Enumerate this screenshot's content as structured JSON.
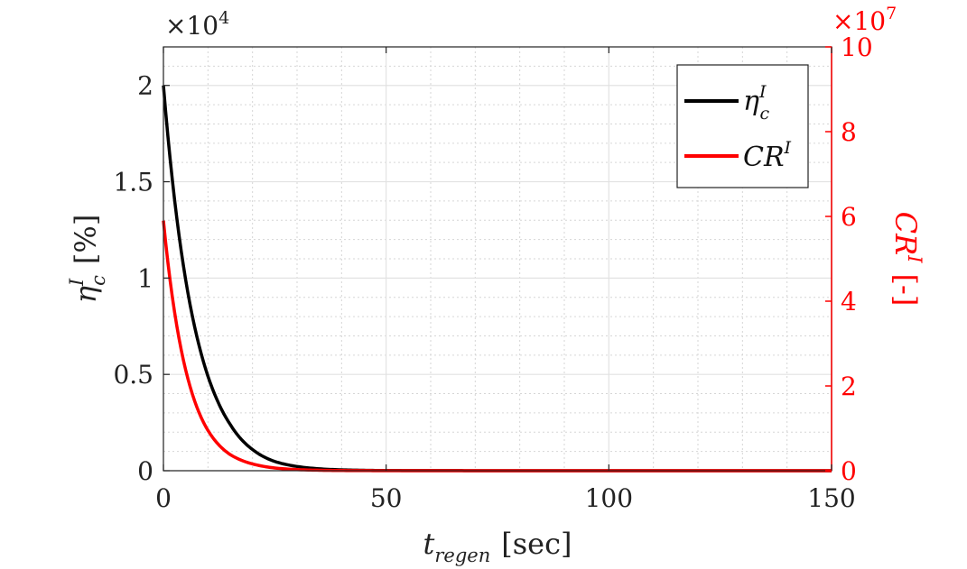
{
  "chart_data": {
    "type": "line",
    "grid": true,
    "minor_grid": true,
    "legend_position": "top-right",
    "x": {
      "label_base": "t",
      "label_sub": "regen",
      "label_unit": "[sec]",
      "lim": [
        0,
        150
      ],
      "ticks": [
        0,
        50,
        100,
        150
      ],
      "tick_labels": [
        "0",
        "50",
        "100",
        "150"
      ]
    },
    "y_left": {
      "label_base": "η",
      "label_sub": "c",
      "label_sup": "I",
      "label_unit": "[%]",
      "lim": [
        0,
        22000
      ],
      "ticks": [
        0,
        5000,
        10000,
        15000,
        20000
      ],
      "tick_labels": [
        "0",
        "0.5",
        "1",
        "1.5",
        "2"
      ],
      "exponent_label": "×10",
      "exponent_power": "4",
      "color": "#222222"
    },
    "y_right": {
      "label_base": "CR",
      "label_sup": "I",
      "label_unit": "[-]",
      "lim": [
        0,
        100000000
      ],
      "ticks": [
        0,
        20000000,
        40000000,
        60000000,
        80000000,
        100000000
      ],
      "tick_labels": [
        "0",
        "2",
        "4",
        "6",
        "8",
        "10"
      ],
      "exponent_label": "×10",
      "exponent_power": "7",
      "color": "#ff0000"
    },
    "series": [
      {
        "name": "η_c^I",
        "legend_base": "η",
        "legend_sub": "c",
        "legend_sup": "I",
        "axis": "left",
        "color": "#000000",
        "x": [
          0,
          2,
          4,
          6,
          8,
          10,
          12,
          15,
          20,
          25,
          30,
          40,
          50,
          75,
          100,
          150
        ],
        "y": [
          20000,
          15100,
          11400,
          8600,
          6500,
          4900,
          3700,
          2400,
          1100,
          480,
          220,
          45,
          10,
          0,
          0,
          0
        ]
      },
      {
        "name": "CR^I",
        "legend_base": "CR",
        "legend_sup": "I",
        "axis": "right",
        "color": "#ff0000",
        "x": [
          0,
          2,
          4,
          6,
          8,
          10,
          12,
          15,
          20,
          25,
          30,
          40,
          50,
          75,
          100,
          150
        ],
        "y": [
          59000000,
          41000000,
          28500000,
          19800000,
          13700000,
          9500000,
          6600000,
          3800000,
          1600000,
          650000,
          270000,
          45000,
          8000,
          0,
          0,
          0
        ]
      }
    ]
  }
}
